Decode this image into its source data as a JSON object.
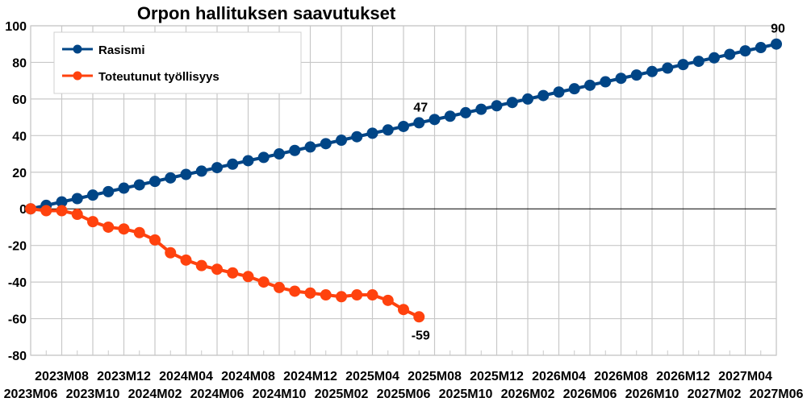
{
  "chart_data": {
    "type": "line",
    "title": "Orpon hallituksen saavutukset",
    "xlabel": "",
    "ylabel": "",
    "ylim": [
      -80,
      100
    ],
    "yticks": [
      100,
      80,
      60,
      40,
      20,
      0,
      -20,
      -40,
      -60,
      -80
    ],
    "grid": true,
    "legend_position": "upper-left inside",
    "x_start": "2023M06",
    "x_end": "2027M06",
    "x_tick_labels_top_row": [
      "2023M08",
      "2023M12",
      "2024M04",
      "2024M08",
      "2024M12",
      "2025M04",
      "2025M08",
      "2025M12",
      "2026M04",
      "2026M08",
      "2026M12",
      "2027M04"
    ],
    "x_tick_labels_bottom_row": [
      "2023M06",
      "2023M10",
      "2024M02",
      "2024M06",
      "2024M10",
      "2025M02",
      "2025M06",
      "2025M10",
      "2026M02",
      "2026M06",
      "2026M10",
      "2027M02",
      "2027M06"
    ],
    "series": [
      {
        "name": "Rasismi",
        "color": "#004586",
        "start_index": 0,
        "values": [
          0,
          1.9,
          3.8,
          5.6,
          7.5,
          9.4,
          11.3,
          13.1,
          15,
          16.9,
          18.8,
          20.6,
          22.5,
          24.4,
          26.3,
          28.1,
          30,
          31.9,
          33.8,
          35.6,
          37.5,
          39.4,
          41.3,
          43.1,
          45,
          47,
          48.8,
          50.6,
          52.5,
          54.4,
          56.3,
          58.1,
          60,
          61.9,
          63.8,
          65.6,
          67.5,
          69.4,
          71.3,
          73.1,
          75,
          76.9,
          78.8,
          80.6,
          82.5,
          84.4,
          86.3,
          88.1,
          90
        ],
        "data_labels": [
          {
            "index": 25,
            "text": "47"
          },
          {
            "index": 48,
            "text": "90"
          }
        ]
      },
      {
        "name": "Toteutunut työllisyys",
        "color": "#ff420e",
        "start_index": 0,
        "values": [
          0,
          -1,
          -1,
          -3,
          -7,
          -10,
          -11,
          -13,
          -17,
          -24,
          -28,
          -31,
          -33,
          -35,
          -37,
          -40,
          -43,
          -45,
          -46,
          -47,
          -48,
          -47,
          -47,
          -50,
          -55,
          -59
        ],
        "data_labels": [
          {
            "index": 25,
            "text": "-59"
          }
        ]
      }
    ]
  },
  "colors": {
    "grid": "#c8c8c8",
    "zero_line": "#000000",
    "background": "#ffffff"
  }
}
